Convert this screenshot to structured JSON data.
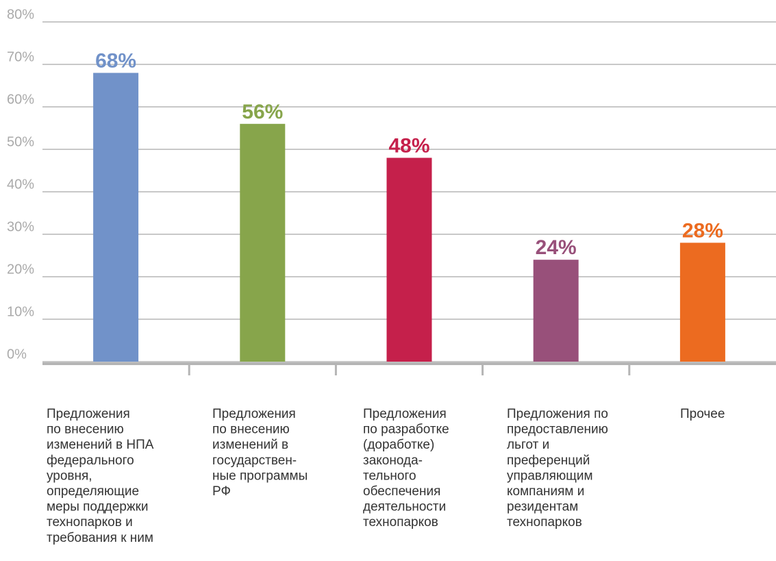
{
  "chart_data": {
    "type": "bar",
    "categories": [
      [
        "Предложения",
        "по внесению",
        "изменений в НПА",
        "федерального",
        "уровня,",
        "определяющие",
        "меры поддержки",
        "технопарков и",
        "требования к ним"
      ],
      [
        "Предложения",
        "по внесению",
        "изменений в",
        "государствен-",
        "ные программы",
        "РФ"
      ],
      [
        "Предложения",
        "по разработке",
        "(доработке)",
        "законода-",
        "тельного",
        "обеспечения",
        "деятельности",
        "технопарков"
      ],
      [
        "Предложения по",
        "предоставлению",
        "льгот и",
        "преференций",
        "управляющим",
        "компаниям и",
        "резидентам",
        "технопарков"
      ],
      [
        "Прочее"
      ]
    ],
    "values": [
      68,
      56,
      48,
      24,
      28
    ],
    "value_labels": [
      "68%",
      "56%",
      "48%",
      "24%",
      "28%"
    ],
    "colors": [
      "#7192c9",
      "#87a54b",
      "#c5204b",
      "#98507a",
      "#ec6b20"
    ],
    "ylim": [
      0,
      80
    ],
    "yticks": [
      {
        "value": 0,
        "label": "0%"
      },
      {
        "value": 10,
        "label": "10%"
      },
      {
        "value": 20,
        "label": "20%"
      },
      {
        "value": 30,
        "label": "30%"
      },
      {
        "value": 40,
        "label": "40%"
      },
      {
        "value": 50,
        "label": "50%"
      },
      {
        "value": 60,
        "label": "60%"
      },
      {
        "value": 70,
        "label": "70%"
      },
      {
        "value": 80,
        "label": "80%"
      }
    ],
    "grid": true
  }
}
